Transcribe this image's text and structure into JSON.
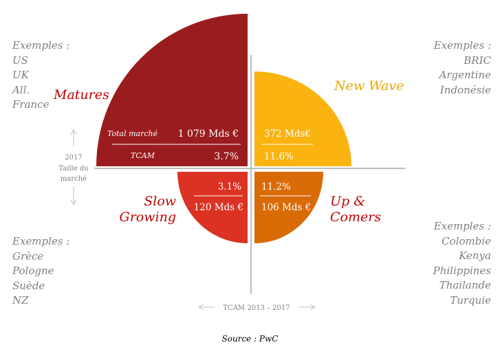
{
  "colors": {
    "matures": "#9b1c1f",
    "new_wave": "#fbb310",
    "slow_growing": "#db3224",
    "up_comers": "#d96b07",
    "label_red": "#c00000",
    "label_orange": "#e8a800",
    "gray_text": "#7f7f7f",
    "axis": "#a6a6a6"
  },
  "examples": {
    "top_left": {
      "title": "Exemples :",
      "items": [
        "US",
        "UK",
        "All.",
        "France"
      ]
    },
    "top_right": {
      "title": "Exemples :",
      "items": [
        "BRIC",
        "Argentine",
        "Indonésie"
      ]
    },
    "bottom_left": {
      "title": "Exemples :",
      "items": [
        "Grèce",
        "Pologne",
        "Suède",
        "NZ"
      ]
    },
    "bottom_right": {
      "title": "Exemples :",
      "items": [
        "Colombie",
        "Kenya",
        "Philippines",
        "Thailande",
        "Turquie"
      ]
    }
  },
  "segments": {
    "matures": {
      "name": "Matures",
      "market_label": "Total marché",
      "market_value": "1 079 Mds €",
      "cagr_label": "TCAM",
      "cagr_value": "3.7%"
    },
    "new_wave": {
      "name": "New Wave",
      "market_value": "372 Mds€",
      "cagr_value": "11.6%"
    },
    "slow_growing": {
      "name_line1": "Slow",
      "name_line2": "Growing",
      "cagr_value": "3.1%",
      "market_value": "120 Mds €"
    },
    "up_comers": {
      "name_line1": "Up &",
      "name_line2": "Comers",
      "cagr_value": "11.2%",
      "market_value": "106 Mds €"
    }
  },
  "axes": {
    "vertical_line1": "2017",
    "vertical_line2": "Taille du",
    "vertical_line3": "marché",
    "horizontal": "TCAM 2013 – 2017"
  },
  "source": "Source : PwC"
}
